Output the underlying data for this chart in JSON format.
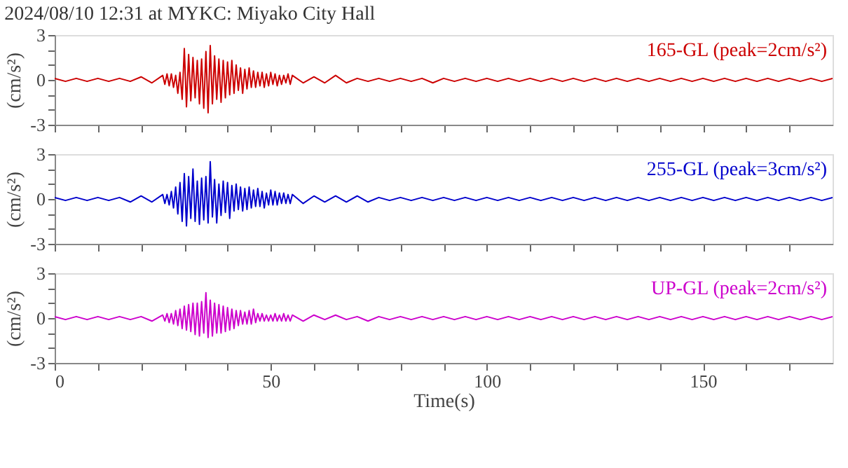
{
  "chart_data": [
    {
      "type": "line",
      "title": "2024/08/10 12:31 at MYKC: Miyako City Hall",
      "ylabel": "(cm/s²)",
      "tick_labels": "y",
      "x": [
        0,
        2.5,
        5,
        7.5,
        10,
        12.5,
        15,
        17.5,
        20,
        22.5,
        25,
        25.5,
        26,
        26.5,
        27,
        27.5,
        28,
        28.5,
        29,
        29.5,
        30,
        30.5,
        31,
        31.5,
        32,
        32.5,
        33,
        33.5,
        34,
        34.5,
        35,
        35.5,
        36,
        36.5,
        37,
        37.5,
        38,
        38.5,
        39,
        39.5,
        40,
        40.5,
        41,
        41.5,
        42,
        42.5,
        43,
        43.5,
        44,
        44.5,
        45,
        45.5,
        46,
        46.5,
        47,
        47.5,
        48,
        48.5,
        49,
        49.5,
        50,
        50.5,
        51,
        51.5,
        52,
        52.5,
        53,
        53.5,
        54,
        54.5,
        55,
        57.5,
        60,
        62.5,
        65,
        67.5,
        70,
        72.5,
        75,
        77.5,
        80,
        82.5,
        85,
        87.5,
        90,
        92.5,
        95,
        97.5,
        100,
        102.5,
        105,
        107.5,
        110,
        112.5,
        115,
        117.5,
        120,
        122.5,
        125,
        127.5,
        130,
        132.5,
        135,
        137.5,
        140,
        142.5,
        145,
        147.5,
        150,
        152.5,
        155,
        157.5,
        160,
        162.5,
        165,
        167.5,
        170,
        172.5,
        175,
        177.5,
        180
      ],
      "series": [
        {
          "name": "165-GL (peak=2cm/s²)",
          "color": "#cc0000",
          "values": [
            0.1,
            -0.1,
            0.1,
            -0.1,
            0.1,
            -0.1,
            0.1,
            -0.1,
            0.2,
            -0.2,
            0.3,
            -0.3,
            0.4,
            -0.4,
            0.4,
            -0.5,
            0.3,
            -0.9,
            0.5,
            -1.3,
            2.1,
            -1.8,
            1.7,
            -1.4,
            1.5,
            -1.2,
            1.3,
            -1.6,
            1.4,
            -1.9,
            1.9,
            -2.2,
            2.3,
            -1.6,
            1.6,
            -1.3,
            1.4,
            -1.5,
            1.3,
            -1.2,
            1.2,
            -1.0,
            1.3,
            -0.9,
            1.0,
            -0.7,
            0.8,
            -0.9,
            0.7,
            -0.6,
            0.8,
            -0.5,
            0.6,
            -0.5,
            0.5,
            -0.4,
            0.5,
            -0.5,
            0.4,
            -0.4,
            0.5,
            -0.3,
            0.4,
            -0.4,
            0.3,
            -0.3,
            0.3,
            -0.2,
            0.4,
            -0.3,
            0.3,
            -0.2,
            0.2,
            -0.2,
            0.3,
            -0.2,
            0.1,
            -0.1,
            0.1,
            -0.1,
            0.1,
            -0.1,
            0.1,
            -0.2,
            0.1,
            -0.1,
            0.1,
            -0.1,
            0.1,
            -0.1,
            0.1,
            -0.1,
            0.1,
            -0.1,
            0.1,
            -0.1,
            0.1,
            -0.1,
            0.1,
            -0.1,
            0.1,
            -0.1,
            0.1,
            -0.1,
            0.1,
            -0.1,
            0.1,
            -0.1,
            0.1,
            -0.1,
            0.1,
            -0.1,
            0.1,
            -0.1,
            0.1,
            -0.1,
            0.1,
            -0.1,
            0.1,
            -0.1,
            0.1
          ]
        }
      ],
      "xlim": [
        0,
        180
      ],
      "xticks": [
        0,
        {
          "value": 10,
          "label": null
        },
        {
          "value": 20,
          "label": null
        },
        {
          "value": 30,
          "label": null
        },
        {
          "value": 40,
          "label": null
        },
        50,
        {
          "value": 60,
          "label": null
        },
        {
          "value": 70,
          "label": null
        },
        {
          "value": 80,
          "label": null
        },
        {
          "value": 90,
          "label": null
        },
        100,
        {
          "value": 110,
          "label": null
        },
        {
          "value": 120,
          "label": null
        },
        {
          "value": 130,
          "label": null
        },
        {
          "value": 140,
          "label": null
        },
        150,
        {
          "value": 160,
          "label": null
        },
        {
          "value": 170,
          "label": null
        }
      ],
      "ylim": [
        -3,
        3
      ],
      "yticks": [
        -3,
        {
          "value": -2,
          "label": null
        },
        {
          "value": -1,
          "label": null
        },
        0,
        {
          "value": 1,
          "label": null
        },
        {
          "value": 2,
          "label": null
        },
        3
      ]
    },
    {
      "type": "line",
      "ylabel": "(cm/s²)",
      "tick_labels": "y",
      "x": [
        0,
        2.5,
        5,
        7.5,
        10,
        12.5,
        15,
        17.5,
        20,
        22.5,
        25,
        25.5,
        26,
        26.5,
        27,
        27.5,
        28,
        28.5,
        29,
        29.5,
        30,
        30.5,
        31,
        31.5,
        32,
        32.5,
        33,
        33.5,
        34,
        34.5,
        35,
        35.5,
        36,
        36.5,
        37,
        37.5,
        38,
        38.5,
        39,
        39.5,
        40,
        40.5,
        41,
        41.5,
        42,
        42.5,
        43,
        43.5,
        44,
        44.5,
        45,
        45.5,
        46,
        46.5,
        47,
        47.5,
        48,
        48.5,
        49,
        49.5,
        50,
        50.5,
        51,
        51.5,
        52,
        52.5,
        53,
        53.5,
        54,
        54.5,
        55,
        57.5,
        60,
        62.5,
        65,
        67.5,
        70,
        72.5,
        75,
        77.5,
        80,
        82.5,
        85,
        87.5,
        90,
        92.5,
        95,
        97.5,
        100,
        102.5,
        105,
        107.5,
        110,
        112.5,
        115,
        117.5,
        120,
        122.5,
        125,
        127.5,
        130,
        132.5,
        135,
        137.5,
        140,
        142.5,
        145,
        147.5,
        150,
        152.5,
        155,
        157.5,
        160,
        162.5,
        165,
        167.5,
        170,
        172.5,
        175,
        177.5,
        180
      ],
      "series": [
        {
          "name": "255-GL (peak=3cm/s²)",
          "color": "#0000cc",
          "values": [
            0.1,
            -0.1,
            0.1,
            -0.1,
            0.1,
            -0.1,
            0.1,
            -0.2,
            0.2,
            -0.2,
            0.3,
            -0.3,
            0.3,
            -0.4,
            0.5,
            -0.6,
            0.8,
            -1.0,
            1.1,
            -1.5,
            1.7,
            -1.8,
            1.5,
            -1.3,
            2.0,
            -1.5,
            1.2,
            -1.7,
            1.4,
            -1.4,
            1.5,
            -1.6,
            2.5,
            -1.2,
            1.3,
            -1.6,
            1.0,
            -1.1,
            1.2,
            -0.9,
            1.1,
            -1.3,
            0.9,
            -0.8,
            1.0,
            -0.7,
            0.8,
            -0.8,
            0.7,
            -0.7,
            0.8,
            -0.6,
            0.6,
            -0.5,
            0.7,
            -0.5,
            0.5,
            -0.6,
            0.4,
            -0.4,
            0.6,
            -0.4,
            0.5,
            -0.4,
            0.4,
            -0.3,
            0.4,
            -0.3,
            0.3,
            -0.3,
            0.3,
            -0.3,
            0.2,
            -0.2,
            0.2,
            -0.2,
            0.2,
            -0.2,
            0.1,
            -0.1,
            0.1,
            -0.1,
            0.1,
            -0.1,
            0.1,
            -0.1,
            0.1,
            -0.1,
            0.1,
            -0.1,
            0.1,
            -0.1,
            0.1,
            -0.1,
            0.1,
            -0.1,
            0.1,
            -0.1,
            0.1,
            -0.1,
            0.1,
            -0.1,
            0.1,
            -0.1,
            0.1,
            -0.1,
            0.1,
            -0.1,
            0.1,
            -0.1,
            0.1,
            -0.1,
            0.1,
            -0.1,
            0.1,
            -0.1,
            0.1,
            -0.1,
            0.1,
            -0.1,
            0.1
          ]
        }
      ],
      "xlim": [
        0,
        180
      ],
      "xticks": [
        0,
        {
          "value": 10,
          "label": null
        },
        {
          "value": 20,
          "label": null
        },
        {
          "value": 30,
          "label": null
        },
        {
          "value": 40,
          "label": null
        },
        50,
        {
          "value": 60,
          "label": null
        },
        {
          "value": 70,
          "label": null
        },
        {
          "value": 80,
          "label": null
        },
        {
          "value": 90,
          "label": null
        },
        100,
        {
          "value": 110,
          "label": null
        },
        {
          "value": 120,
          "label": null
        },
        {
          "value": 130,
          "label": null
        },
        {
          "value": 140,
          "label": null
        },
        150,
        {
          "value": 160,
          "label": null
        },
        {
          "value": 170,
          "label": null
        }
      ],
      "ylim": [
        -3,
        3
      ],
      "yticks": [
        -3,
        {
          "value": -2,
          "label": null
        },
        {
          "value": -1,
          "label": null
        },
        0,
        {
          "value": 1,
          "label": null
        },
        {
          "value": 2,
          "label": null
        },
        3
      ]
    },
    {
      "type": "line",
      "ylabel": "(cm/s²)",
      "xlabel": "Time(s)",
      "x": [
        0,
        2.5,
        5,
        7.5,
        10,
        12.5,
        15,
        17.5,
        20,
        22.5,
        25,
        25.5,
        26,
        26.5,
        27,
        27.5,
        28,
        28.5,
        29,
        29.5,
        30,
        30.5,
        31,
        31.5,
        32,
        32.5,
        33,
        33.5,
        34,
        34.5,
        35,
        35.5,
        36,
        36.5,
        37,
        37.5,
        38,
        38.5,
        39,
        39.5,
        40,
        40.5,
        41,
        41.5,
        42,
        42.5,
        43,
        43.5,
        44,
        44.5,
        45,
        45.5,
        46,
        46.5,
        47,
        47.5,
        48,
        48.5,
        49,
        49.5,
        50,
        50.5,
        51,
        51.5,
        52,
        52.5,
        53,
        53.5,
        54,
        54.5,
        55,
        57.5,
        60,
        62.5,
        65,
        67.5,
        70,
        72.5,
        75,
        77.5,
        80,
        82.5,
        85,
        87.5,
        90,
        92.5,
        95,
        97.5,
        100,
        102.5,
        105,
        107.5,
        110,
        112.5,
        115,
        117.5,
        120,
        122.5,
        125,
        127.5,
        130,
        132.5,
        135,
        137.5,
        140,
        142.5,
        145,
        147.5,
        150,
        152.5,
        155,
        157.5,
        160,
        162.5,
        165,
        167.5,
        170,
        172.5,
        175,
        177.5,
        180
      ],
      "series": [
        {
          "name": "UP-GL (peak=2cm/s²)",
          "color": "#cc00cc",
          "values": [
            0.1,
            -0.1,
            0.1,
            -0.1,
            0.1,
            -0.1,
            0.1,
            -0.1,
            0.1,
            -0.2,
            0.2,
            -0.2,
            0.3,
            -0.3,
            0.3,
            -0.4,
            0.5,
            -0.5,
            0.6,
            -0.7,
            0.8,
            -0.8,
            0.9,
            -0.9,
            1.0,
            -1.1,
            1.0,
            -1.2,
            1.1,
            -1.0,
            1.7,
            -1.3,
            1.2,
            -1.2,
            1.0,
            -1.0,
            0.9,
            -1.0,
            0.8,
            -0.9,
            0.7,
            -0.8,
            0.6,
            -0.7,
            0.5,
            -0.5,
            0.5,
            -0.4,
            0.4,
            -0.4,
            0.5,
            -0.4,
            0.6,
            -0.3,
            0.3,
            -0.2,
            0.3,
            -0.2,
            0.2,
            -0.2,
            0.2,
            -0.2,
            0.3,
            -0.2,
            0.2,
            -0.2,
            0.3,
            -0.2,
            0.2,
            -0.2,
            0.2,
            -0.2,
            0.2,
            -0.1,
            0.2,
            -0.1,
            0.1,
            -0.2,
            0.1,
            -0.1,
            0.1,
            -0.1,
            0.1,
            -0.1,
            0.1,
            -0.1,
            0.1,
            -0.1,
            0.1,
            -0.1,
            0.1,
            -0.1,
            0.1,
            -0.1,
            0.1,
            -0.1,
            0.1,
            -0.1,
            0.1,
            -0.1,
            0.1,
            -0.1,
            0.1,
            -0.1,
            0.1,
            -0.1,
            0.1,
            -0.1,
            0.1,
            -0.1,
            0.1,
            -0.1,
            0.1,
            -0.1,
            0.1,
            -0.1,
            0.1,
            -0.1,
            0.1,
            -0.1,
            0.1
          ]
        }
      ],
      "xlim": [
        0,
        180
      ],
      "xticks": [
        0,
        {
          "value": 10,
          "label": null
        },
        {
          "value": 20,
          "label": null
        },
        {
          "value": 30,
          "label": null
        },
        {
          "value": 40,
          "label": null
        },
        50,
        {
          "value": 60,
          "label": null
        },
        {
          "value": 70,
          "label": null
        },
        {
          "value": 80,
          "label": null
        },
        {
          "value": 90,
          "label": null
        },
        100,
        {
          "value": 110,
          "label": null
        },
        {
          "value": 120,
          "label": null
        },
        {
          "value": 130,
          "label": null
        },
        {
          "value": 140,
          "label": null
        },
        150,
        {
          "value": 160,
          "label": null
        },
        {
          "value": 170,
          "label": null
        }
      ],
      "ylim": [
        -3,
        3
      ],
      "yticks": [
        -3,
        {
          "value": -2,
          "label": null
        },
        {
          "value": -1,
          "label": null
        },
        0,
        {
          "value": 1,
          "label": null
        },
        {
          "value": 2,
          "label": null
        },
        3
      ]
    }
  ]
}
